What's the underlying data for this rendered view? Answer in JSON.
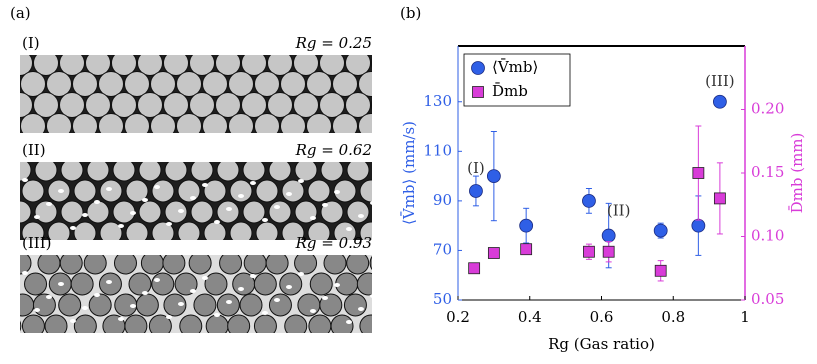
{
  "figure": {
    "panel_labels": [
      "(a)",
      "(b)"
    ],
    "images": [
      {
        "label": "(I)",
        "caption": "Rg = 0.25"
      },
      {
        "label": "(II)",
        "caption": "Rg = 0.62"
      },
      {
        "label": "(III)",
        "caption": "Rg = 0.93"
      }
    ]
  },
  "chart_data": {
    "type": "scatter",
    "xlabel": "Rg (Gas ratio)",
    "ylabel": "⟨V̄mb⟩ (mm/s)",
    "y2label": "D̄mb (mm)",
    "xlim": [
      0.2,
      1
    ],
    "xticks": [
      0.2,
      0.4,
      0.6,
      0.8,
      1
    ],
    "ylim": [
      50,
      152.5
    ],
    "yticks": [
      50,
      70,
      90,
      110,
      130
    ],
    "y2lim": [
      0.05,
      0.25
    ],
    "y2ticks": [
      0.05,
      {
        "value": 0.1,
        "label": "0.10"
      },
      0.15,
      {
        "value": 0.2,
        "label": "0.20"
      }
    ],
    "legend": "upper left",
    "annotations": [
      "(I)",
      "(II)",
      "(III)"
    ],
    "series": [
      {
        "name": "⟨V̄mb⟩",
        "color": "#2f5fe6",
        "marker": "circle",
        "x": [
          0.25,
          0.3,
          0.39,
          0.565,
          0.62,
          0.765,
          0.87,
          0.93
        ],
        "values": [
          94,
          100,
          80,
          90,
          76,
          78,
          80,
          130
        ],
        "errors": [
          6,
          18,
          7,
          5,
          13,
          3,
          12,
          null
        ]
      },
      {
        "name": "D̄mb",
        "color": "#d83cd8",
        "marker": "square",
        "axis": "y2",
        "x": [
          0.245,
          0.3,
          0.39,
          0.565,
          0.62,
          0.765,
          0.87,
          0.93
        ],
        "values": [
          0.075,
          0.087,
          0.09,
          0.088,
          0.088,
          0.073,
          0.15,
          0.13
        ],
        "errors": [
          0.004,
          null,
          null,
          0.006,
          0.008,
          0.008,
          0.037,
          0.028
        ]
      }
    ]
  }
}
